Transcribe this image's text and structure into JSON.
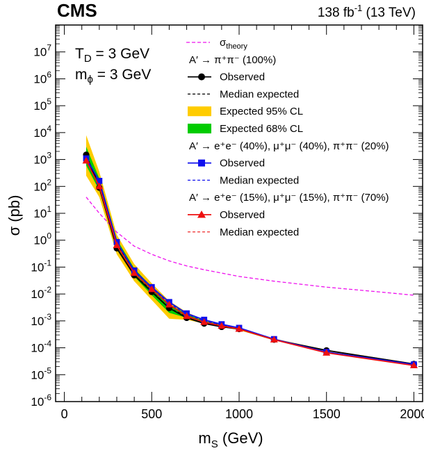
{
  "chart_data": {
    "type": "line",
    "experiment": "CMS",
    "luminosity": "138 fb",
    "luminosity_exp": "-1",
    "energy": "(13 TeV)",
    "xlabel": "m",
    "xlabel_sub": "S",
    "xlabel_unit": "(GeV)",
    "ylabel": "σ (pb)",
    "xlim": [
      -50,
      2050
    ],
    "ylim_log10": [
      -6,
      8
    ],
    "yscale": "log",
    "x_ticks": [
      0,
      500,
      1000,
      1500,
      2000
    ],
    "y_tick_exponents": [
      -6,
      -5,
      -4,
      -3,
      -2,
      -1,
      0,
      1,
      2,
      3,
      4,
      5,
      6,
      7
    ],
    "y_tick_base": "10",
    "params": [
      {
        "main": "T",
        "sub": "D",
        "value": " = 3 GeV"
      },
      {
        "main": "m",
        "sub": "ϕ",
        "value": " = 3 GeV"
      }
    ],
    "legend": [
      {
        "kind": "theory",
        "main": "σ",
        "sub": "theory"
      },
      {
        "kind": "header",
        "text": "A′ → π⁺π⁻ (100%)"
      },
      {
        "kind": "obs-black",
        "text": "Observed"
      },
      {
        "kind": "exp-black",
        "text": "Median expected"
      },
      {
        "kind": "band95",
        "text": "Expected 95% CL"
      },
      {
        "kind": "band68",
        "text": "Expected 68% CL"
      },
      {
        "kind": "header",
        "text": "A′ → e⁺e⁻ (40%), μ⁺μ⁻ (40%), π⁺π⁻ (20%)"
      },
      {
        "kind": "obs-blue",
        "text": "Observed"
      },
      {
        "kind": "exp-blue",
        "text": "Median expected"
      },
      {
        "kind": "header",
        "text": "A′ → e⁺e⁻ (15%), μ⁺μ⁻ (15%), π⁺π⁻ (70%)"
      },
      {
        "kind": "obs-red",
        "text": "Observed"
      },
      {
        "kind": "exp-red",
        "text": "Median expected"
      }
    ],
    "x": [
      125,
      200,
      300,
      400,
      500,
      600,
      700,
      800,
      900,
      1000,
      1200,
      1500,
      2000
    ],
    "series": [
      {
        "name": "Observed",
        "scenario": "A′ → π⁺π⁻ (100%)",
        "color": "#000000",
        "marker": "circle",
        "values": [
          1500,
          90,
          0.5,
          0.05,
          0.012,
          0.003,
          0.0013,
          0.0008,
          0.0006,
          0.0005,
          0.0002,
          8e-05,
          2.5e-05
        ]
      },
      {
        "name": "Median expected",
        "scenario": "A′ → π⁺π⁻ (100%)",
        "color": "#000000",
        "dash": "4,3",
        "values": [
          1200,
          120,
          0.8,
          0.06,
          0.013,
          0.003,
          0.0015,
          0.0009,
          0.0007,
          0.0005,
          0.0002,
          8e-05,
          2.5e-05
        ]
      },
      {
        "name": "Observed",
        "scenario": "A′ → e⁺e⁻ (40%), μ⁺μ⁻ (40%), π⁺π⁻ (20%)",
        "color": "#1010ee",
        "marker": "square",
        "values": [
          1100,
          160,
          0.85,
          0.075,
          0.018,
          0.005,
          0.0019,
          0.0011,
          0.00075,
          0.00055,
          0.00021,
          7e-05,
          2.4e-05
        ]
      },
      {
        "name": "Median expected",
        "scenario": "A′ → e⁺e⁻ (40%), μ⁺μ⁻ (40%), π⁺π⁻ (20%)",
        "color": "#1010ee",
        "dash": "4,3",
        "values": [
          1000,
          150,
          0.9,
          0.07,
          0.017,
          0.0045,
          0.0018,
          0.001,
          0.0007,
          0.0005,
          0.0002,
          7e-05,
          2.4e-05
        ]
      },
      {
        "name": "Observed",
        "scenario": "A′ → e⁺e⁻ (15%), μ⁺μ⁻ (15%), π⁺π⁻ (70%)",
        "color": "#ee1010",
        "marker": "triangle",
        "values": [
          900,
          100,
          0.65,
          0.06,
          0.015,
          0.004,
          0.0015,
          0.0009,
          0.00065,
          0.0005,
          0.0002,
          6.5e-05,
          2.2e-05
        ]
      },
      {
        "name": "Median expected",
        "scenario": "A′ → e⁺e⁻ (15%), μ⁺μ⁻ (15%), π⁺π⁻ (70%)",
        "color": "#ee1010",
        "dash": "4,3",
        "values": [
          900,
          110,
          0.7,
          0.06,
          0.015,
          0.004,
          0.0016,
          0.0009,
          0.00065,
          0.0005,
          0.0002,
          6.5e-05,
          2.2e-05
        ]
      }
    ],
    "theory": {
      "name": "σ",
      "color": "#ee11ee",
      "x": [
        125,
        200,
        300,
        400,
        500,
        600,
        700,
        800,
        1000,
        1200,
        1500,
        1800,
        2000
      ],
      "values": [
        40,
        10,
        2,
        0.6,
        0.3,
        0.17,
        0.11,
        0.08,
        0.045,
        0.03,
        0.018,
        0.012,
        0.009
      ]
    },
    "band95": {
      "x": [
        125,
        200,
        300,
        400,
        500,
        600,
        700,
        800,
        900,
        1000,
        1200,
        1500,
        2000
      ],
      "low": [
        250,
        40,
        0.3,
        0.03,
        0.006,
        0.0012,
        0.0011,
        0.0008,
        0.0006,
        0.00045,
        0.00019,
        7.5e-05,
        2.3e-05
      ],
      "high": [
        8000,
        350,
        1.6,
        0.13,
        0.025,
        0.0055,
        0.0021,
        0.0011,
        0.00075,
        0.00055,
        0.00022,
        8.3e-05,
        2.6e-05
      ]
    },
    "band68": {
      "x": [
        125,
        200,
        300,
        400,
        500,
        600,
        700,
        800,
        900,
        1000,
        1200,
        1500,
        2000
      ],
      "low": [
        600,
        70,
        0.5,
        0.045,
        0.009,
        0.002,
        0.0013,
        0.00085,
        0.00065,
        0.00048,
        0.0002,
        7.8e-05,
        2.4e-05
      ],
      "high": [
        3000,
        200,
        1.1,
        0.09,
        0.018,
        0.0042,
        0.0018,
        0.001,
        0.0007,
        0.00052,
        0.00021,
        8e-05,
        2.5e-05
      ]
    }
  }
}
